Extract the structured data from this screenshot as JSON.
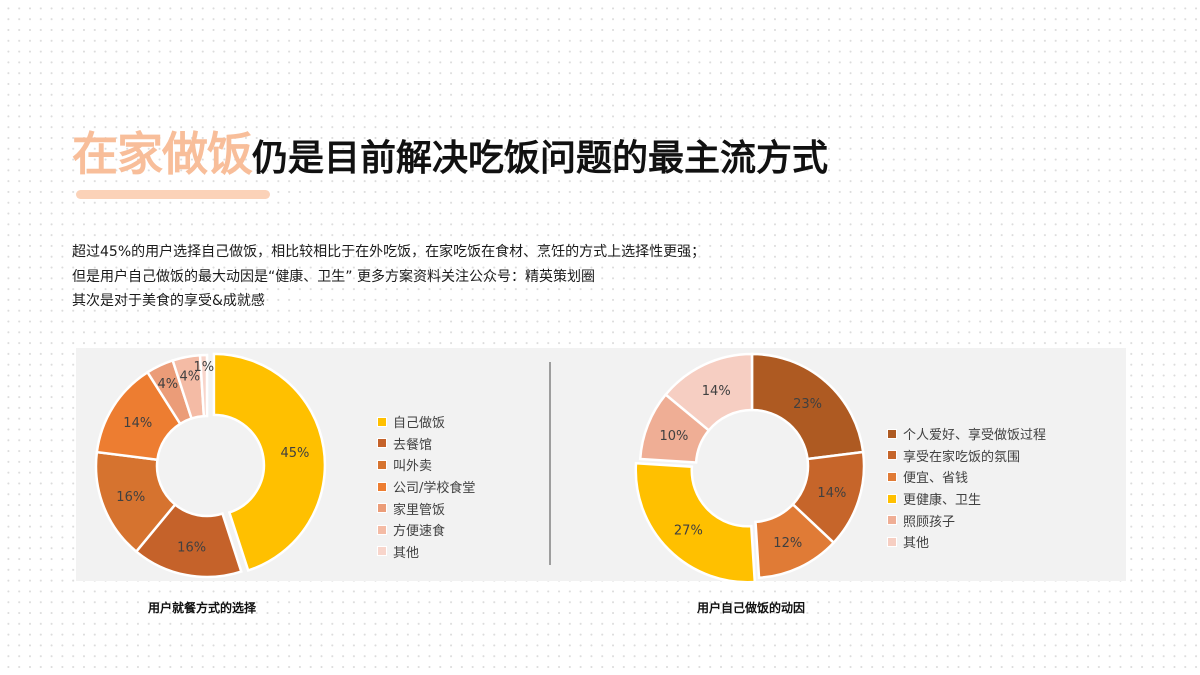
{
  "title": {
    "highlight": "在家做饭",
    "rest": "仍是目前解决吃饭问题的最主流方式",
    "highlight_color": "#f8be9a"
  },
  "description": [
    "超过45%的用户选择自己做饭，相比较相比于在外吃饭，在家吃饭在食材、烹饪的方式上选择性更强；",
    "但是用户自己做饭的最大动因是“健康、卫生” 更多方案资料关注公众号：精英策划圈",
    "其次是对于美食的享受&成就感"
  ],
  "chart_data": [
    {
      "type": "pie",
      "variant": "donut",
      "title": "用户就餐方式的选择",
      "categories": [
        "自己做饭",
        "去餐馆",
        "叫外卖",
        "公司/学校食堂",
        "家里管饭",
        "方便速食",
        "其他"
      ],
      "values": [
        45,
        16,
        16,
        14,
        4,
        4,
        1
      ],
      "labels": [
        "45%",
        "16%",
        "16%",
        "14%",
        "4%",
        "4%",
        "1%"
      ],
      "colors": [
        "#ffc000",
        "#c5622a",
        "#d6732f",
        "#ed7d31",
        "#eb9c78",
        "#f4bba5",
        "#f8d5cb"
      ],
      "exploded": [
        "自己做饭"
      ],
      "legend_position": "right"
    },
    {
      "type": "pie",
      "variant": "donut",
      "title": "用户自己做饭的动因",
      "categories": [
        "个人爱好、享受做饭过程",
        "享受在家吃饭的氛围",
        "便宜、省钱",
        "更健康、卫生",
        "照顾孩子",
        "其他"
      ],
      "values": [
        23,
        14,
        12,
        27,
        10,
        14
      ],
      "labels": [
        "23%",
        "14%",
        "12%",
        "27%",
        "10%",
        "14%"
      ],
      "colors": [
        "#ae5a22",
        "#c6652a",
        "#e07b36",
        "#ffc000",
        "#efae95",
        "#f6cec2"
      ],
      "exploded": [
        "更健康、卫生"
      ],
      "legend_position": "right"
    }
  ],
  "charts": {
    "left": {
      "caption": "用户就餐方式的选择",
      "legend": [
        {
          "label": "自己做饭",
          "color": "#ffc000"
        },
        {
          "label": "去餐馆",
          "color": "#c5622a"
        },
        {
          "label": "叫外卖",
          "color": "#d6732f"
        },
        {
          "label": "公司/学校食堂",
          "color": "#ed7d31"
        },
        {
          "label": "家里管饭",
          "color": "#eb9c78"
        },
        {
          "label": "方便速食",
          "color": "#f4bba5"
        },
        {
          "label": "其他",
          "color": "#f8d5cb"
        }
      ]
    },
    "right": {
      "caption": "用户自己做饭的动因",
      "legend": [
        {
          "label": "个人爱好、享受做饭过程",
          "color": "#ae5a22"
        },
        {
          "label": "享受在家吃饭的氛围",
          "color": "#c6652a"
        },
        {
          "label": "便宜、省钱",
          "color": "#e07b36"
        },
        {
          "label": "更健康、卫生",
          "color": "#ffc000"
        },
        {
          "label": "照顾孩子",
          "color": "#efae95"
        },
        {
          "label": "其他",
          "color": "#f6cec2"
        }
      ]
    }
  }
}
